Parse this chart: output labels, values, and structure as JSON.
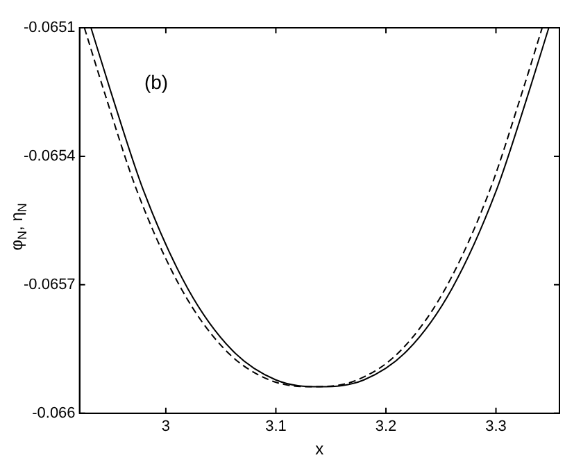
{
  "chart_data": {
    "type": "line",
    "xlabel": "x",
    "ylabel": "φ$_{N}$, η$_{N}$",
    "annotations": [
      "(b)"
    ],
    "xlim": [
      2.9216,
      3.3577
    ],
    "xticks": [
      3,
      3.1,
      3.2,
      3.3
    ],
    "ylim": [
      -0.066,
      -0.0651
    ],
    "yticks": [
      -0.066,
      -0.0657,
      -0.0654,
      -0.0651
    ],
    "grid": false,
    "legend": false,
    "series": [
      {
        "color": "#000000",
        "line_style": "solid",
        "x": [
          2.932,
          2.95,
          2.98,
          3.02,
          3.06,
          3.1,
          3.14,
          3.18,
          3.22,
          3.26,
          3.3,
          3.33,
          3.348
        ],
        "values": [
          -0.0651,
          -0.065249,
          -0.065482,
          -0.065709,
          -0.065852,
          -0.065922,
          -0.065938,
          -0.065922,
          -0.065852,
          -0.065709,
          -0.065482,
          -0.065249,
          -0.0651
        ]
      },
      {
        "color": "#000000",
        "line_style": "dashed",
        "x": [
          2.926,
          2.944,
          2.974,
          3.014,
          3.054,
          3.094,
          3.134,
          3.174,
          3.214,
          3.254,
          3.294,
          3.324,
          3.342
        ],
        "values": [
          -0.0651,
          -0.065249,
          -0.065482,
          -0.065709,
          -0.065852,
          -0.065922,
          -0.065938,
          -0.065922,
          -0.065852,
          -0.065709,
          -0.065482,
          -0.065249,
          -0.0651
        ]
      }
    ]
  }
}
